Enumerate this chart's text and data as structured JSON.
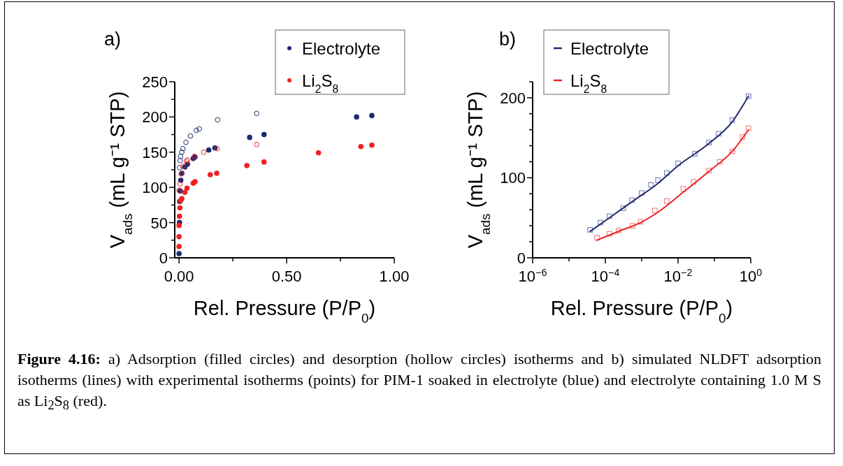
{
  "chart_data": [
    {
      "type": "scatter",
      "title": "a)",
      "xlabel": "Rel. Pressure (P/P$_{0}$)",
      "ylabel": "V$_{ads}$ (mL g⁻¹ STP)",
      "xlim": [
        -0.02,
        1
      ],
      "xticks": [
        {
          "value": 0,
          "label": "0.00"
        },
        {
          "value": 0.25,
          "label": null
        },
        {
          "value": 0.5,
          "label": "0.50"
        },
        {
          "value": 0.75,
          "label": null
        },
        {
          "value": 1,
          "label": "1.00"
        }
      ],
      "ylim": [
        0,
        250
      ],
      "yticks": [
        0,
        {
          "value": 25,
          "label": null
        },
        50,
        {
          "value": 75,
          "label": null
        },
        100,
        {
          "value": 125,
          "label": null
        },
        150,
        {
          "value": 175,
          "label": null
        },
        200,
        {
          "value": 225,
          "label": null
        },
        250
      ],
      "grid": false,
      "legend": "top right",
      "marker": "circle",
      "series": [
        {
          "name": "Electrolyte",
          "color": "#1f2a6e",
          "x": [
            0,
            0.002,
            0.003,
            0.005,
            0.008,
            0.013,
            0.027,
            0.039,
            0.066,
            0.074,
            0.138,
            0.167,
            0.328,
            0.395,
            0.825,
            0.896
          ],
          "values": [
            6,
            50,
            80,
            95,
            110,
            120,
            129,
            133,
            141,
            143,
            153,
            156,
            171,
            175,
            200,
            202
          ]
        },
        {
          "color": "#1f2a6e",
          "x": [
            0.002,
            0.005,
            0.007,
            0.013,
            0.018,
            0.032,
            0.053,
            0.08,
            0.094,
            0.179,
            0.361
          ],
          "values": [
            128,
            138,
            144,
            150,
            155,
            164,
            173,
            181,
            183,
            196,
            205
          ]
        },
        {
          "name": "Li$_{2}$S$_{8}$",
          "color": "#ee2222",
          "x": [
            0,
            0,
            0,
            0.002,
            0.004,
            0.007,
            0.013,
            0.027,
            0.037,
            0.066,
            0.074,
            0.145,
            0.175,
            0.315,
            0.395,
            0.648,
            0.845,
            0.896
          ],
          "values": [
            16,
            30,
            46,
            59,
            71,
            81,
            84,
            93,
            99,
            106,
            108,
            118,
            120,
            131,
            136,
            149,
            158,
            160
          ]
        },
        {
          "color": "#ee2222",
          "x": [
            0,
            0.005,
            0.01,
            0.018,
            0.034,
            0.039,
            0.071,
            0.114,
            0.177,
            0.361
          ],
          "values": [
            96,
            105,
            119,
            130,
            137,
            139,
            144,
            150,
            155,
            161
          ]
        }
      ],
      "annotations": [
        "Figure 4.16: a) Adsorption (filled circles) and desorption (hollow circles) isotherms and b) simulated NLDFT adsorption isotherms (lines) with experimental isotherms (points) for PIM-1 soaked in electrolyte (blue) and electrolyte containing 1.0 M S as Li$_{2}$S$_{8}$ (red)."
      ]
    },
    {
      "type": "scatter",
      "title": "b)",
      "xlabel": "Rel. Pressure (P/P$_{0}$)",
      "ylabel": "V$_{ads}$ (mL g⁻¹ STP)",
      "log": "x",
      "xlim": [
        1e-06,
        1
      ],
      "xticks": [
        {
          "value": 1e-06,
          "label": "10$^{−6}$"
        },
        {
          "value": 1e-05,
          "label": null
        },
        {
          "value": 0.0001,
          "label": "10$^{−4}$"
        },
        {
          "value": 0.001,
          "label": null
        },
        {
          "value": 0.01,
          "label": "10$^{−2}$"
        },
        {
          "value": 0.1,
          "label": null
        },
        {
          "value": 1,
          "label": "10$^{0}$"
        }
      ],
      "ylim": [
        0,
        220
      ],
      "yticks": [
        0,
        {
          "value": 20,
          "label": null
        },
        {
          "value": 40,
          "label": null
        },
        {
          "value": 60,
          "label": null
        },
        {
          "value": 80,
          "label": null
        },
        100,
        {
          "value": 120,
          "label": null
        },
        {
          "value": 140,
          "label": null
        },
        {
          "value": 160,
          "label": null
        },
        {
          "value": 180,
          "label": null
        },
        200,
        {
          "value": 220,
          "label": null
        }
      ],
      "grid": false,
      "legend": "top left",
      "marker": "square",
      "series": [
        {
          "color": "#6a70b0",
          "x": [
            3.8e-05,
            7.4e-05,
            0.00013,
            0.00031,
            0.00054,
            0.001,
            0.0018,
            0.0028,
            0.0049,
            0.01,
            0.029,
            0.071,
            0.13,
            0.31,
            0.87
          ],
          "values": [
            35,
            44,
            52,
            62,
            72,
            81,
            91,
            97,
            106,
            118,
            130,
            144,
            155,
            172,
            202
          ]
        },
        {
          "color": "#f07070",
          "x": [
            5.9e-05,
            0.00013,
            0.00023,
            0.00056,
            0.00093,
            0.0023,
            0.0049,
            0.014,
            0.027,
            0.071,
            0.14,
            0.31,
            0.6,
            0.87
          ],
          "values": [
            25,
            30,
            34,
            40,
            45,
            59,
            71,
            86,
            95,
            109,
            120,
            133,
            151,
            162
          ]
        },
        {
          "name": "Electrolyte",
          "type": "line",
          "marker": "none",
          "color": "#1f2a6e",
          "x": [
            3.8e-05,
            0.00013,
            0.00054,
            0.0028,
            0.01,
            0.071,
            0.31,
            0.87
          ],
          "values": [
            33,
            50,
            70,
            93,
            115,
            143,
            170,
            202
          ]
        },
        {
          "name": "Li$_{2}$S$_{8}$",
          "type": "line",
          "marker": "none",
          "color": "#ee2222",
          "x": [
            5.9e-05,
            0.00023,
            0.00093,
            0.0028,
            0.014,
            0.071,
            0.31,
            0.87
          ],
          "values": [
            22,
            33,
            44,
            57,
            82,
            108,
            133,
            160
          ]
        }
      ]
    }
  ]
}
